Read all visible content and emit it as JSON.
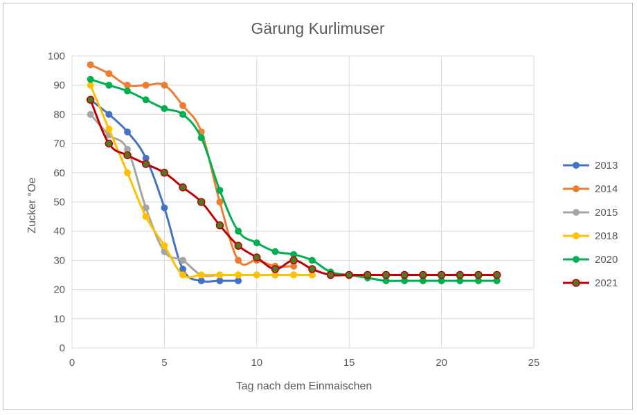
{
  "chart_data": {
    "type": "line",
    "title": "Gärung Kurlimuser",
    "xlabel": "Tag nach dem Einmaischen",
    "ylabel": "Zucker °Oe",
    "xlim": [
      0,
      25
    ],
    "ylim": [
      0,
      100
    ],
    "xticks": [
      0,
      5,
      10,
      15,
      20,
      25
    ],
    "yticks": [
      0,
      10,
      20,
      30,
      40,
      50,
      60,
      70,
      80,
      90,
      100
    ],
    "grid": true,
    "legend_position": "right",
    "series": [
      {
        "name": "2013",
        "color": "#4472c4",
        "points": [
          [
            1,
            85
          ],
          [
            2,
            80
          ],
          [
            3,
            74
          ],
          [
            4,
            65
          ],
          [
            5,
            48
          ],
          [
            6,
            27
          ],
          [
            7,
            23
          ],
          [
            8,
            23
          ],
          [
            9,
            23
          ]
        ]
      },
      {
        "name": "2014",
        "color": "#ed7d31",
        "points": [
          [
            1,
            97
          ],
          [
            2,
            94
          ],
          [
            3,
            90
          ],
          [
            4,
            90
          ],
          [
            5,
            90
          ],
          [
            6,
            83
          ],
          [
            7,
            74
          ],
          [
            8,
            50
          ],
          [
            9,
            30
          ],
          [
            10,
            30
          ],
          [
            11,
            28
          ],
          [
            12,
            28
          ]
        ]
      },
      {
        "name": "2015",
        "color": "#a5a5a5",
        "points": [
          [
            1,
            80
          ],
          [
            2,
            73
          ],
          [
            3,
            68
          ],
          [
            4,
            48
          ],
          [
            5,
            33
          ],
          [
            6,
            30
          ],
          [
            7,
            25
          ],
          [
            8,
            25
          ],
          [
            9,
            25
          ],
          [
            10,
            25
          ],
          [
            11,
            25
          ],
          [
            12,
            25
          ],
          [
            13,
            25
          ]
        ]
      },
      {
        "name": "2018",
        "color": "#ffc000",
        "points": [
          [
            1,
            90
          ],
          [
            2,
            75
          ],
          [
            3,
            60
          ],
          [
            4,
            45
          ],
          [
            5,
            35
          ],
          [
            6,
            25
          ],
          [
            7,
            25
          ],
          [
            8,
            25
          ],
          [
            9,
            25
          ],
          [
            10,
            25
          ],
          [
            11,
            25
          ],
          [
            12,
            25
          ],
          [
            13,
            25
          ]
        ]
      },
      {
        "name": "2020",
        "color": "#00b050",
        "points": [
          [
            1,
            92
          ],
          [
            2,
            90
          ],
          [
            3,
            88
          ],
          [
            4,
            85
          ],
          [
            5,
            82
          ],
          [
            6,
            80
          ],
          [
            7,
            72
          ],
          [
            8,
            54
          ],
          [
            9,
            40
          ],
          [
            10,
            36
          ],
          [
            11,
            33
          ],
          [
            12,
            32
          ],
          [
            13,
            30
          ],
          [
            14,
            26
          ],
          [
            15,
            25
          ],
          [
            16,
            24
          ],
          [
            17,
            23
          ],
          [
            18,
            23
          ],
          [
            19,
            23
          ],
          [
            20,
            23
          ],
          [
            21,
            23
          ],
          [
            22,
            23
          ],
          [
            23,
            23
          ]
        ]
      },
      {
        "name": "2021",
        "color": "#c00000",
        "marker_color": "#4f7a28",
        "points": [
          [
            1,
            85
          ],
          [
            2,
            70
          ],
          [
            3,
            66
          ],
          [
            4,
            63
          ],
          [
            5,
            60
          ],
          [
            6,
            55
          ],
          [
            7,
            50
          ],
          [
            8,
            42
          ],
          [
            9,
            35
          ],
          [
            10,
            31
          ],
          [
            11,
            27
          ],
          [
            12,
            30
          ],
          [
            13,
            27
          ],
          [
            14,
            25
          ],
          [
            15,
            25
          ],
          [
            16,
            25
          ],
          [
            17,
            25
          ],
          [
            18,
            25
          ],
          [
            19,
            25
          ],
          [
            20,
            25
          ],
          [
            21,
            25
          ],
          [
            22,
            25
          ],
          [
            23,
            25
          ]
        ]
      }
    ]
  }
}
